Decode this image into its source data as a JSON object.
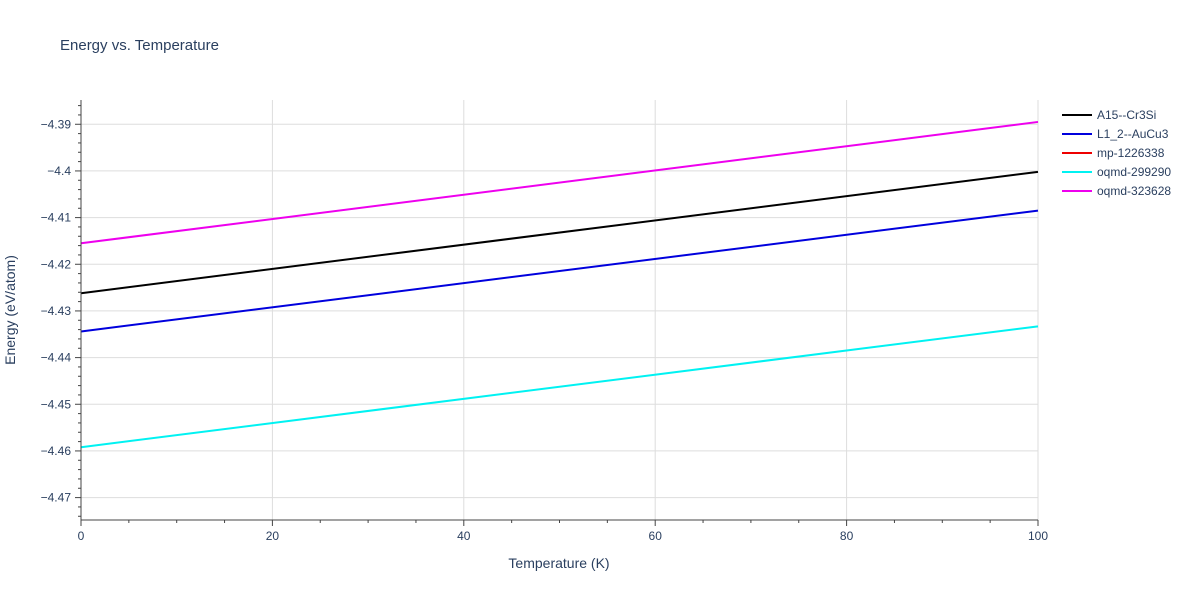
{
  "chart_data": {
    "type": "line",
    "title": "Energy vs. Temperature",
    "xlabel": "Temperature (K)",
    "ylabel": "Energy (eV/atom)",
    "xlim": [
      0,
      100
    ],
    "ylim": [
      -4.4748,
      -4.3848
    ],
    "x_ticks": [
      0,
      20,
      40,
      60,
      80,
      100
    ],
    "x_tick_labels": [
      "0",
      "20",
      "40",
      "60",
      "80",
      "100"
    ],
    "y_ticks": [
      -4.47,
      -4.46,
      -4.45,
      -4.44,
      -4.43,
      -4.42,
      -4.41,
      -4.4,
      -4.39
    ],
    "y_tick_labels": [
      "−4.47",
      "−4.46",
      "−4.45",
      "−4.44",
      "−4.43",
      "−4.42",
      "−4.41",
      "−4.4",
      "−4.39"
    ],
    "grid": true,
    "legend_position": "right",
    "series": [
      {
        "name": "A15--Cr3Si",
        "color": "#000000",
        "x": [
          0,
          100
        ],
        "y": [
          -4.4262,
          -4.4002
        ]
      },
      {
        "name": "L1_2--AuCu3",
        "color": "#0000dd",
        "x": [
          0,
          100
        ],
        "y": [
          -4.4344,
          -4.4085
        ]
      },
      {
        "name": "mp-1226338",
        "color": "#ee0000",
        "x": [],
        "y": []
      },
      {
        "name": "oqmd-299290",
        "color": "#00f2f2",
        "x": [
          0,
          100
        ],
        "y": [
          -4.4592,
          -4.4333
        ]
      },
      {
        "name": "oqmd-323628",
        "color": "#ee00ee",
        "x": [
          0,
          100
        ],
        "y": [
          -4.4155,
          -4.3895
        ]
      }
    ]
  }
}
